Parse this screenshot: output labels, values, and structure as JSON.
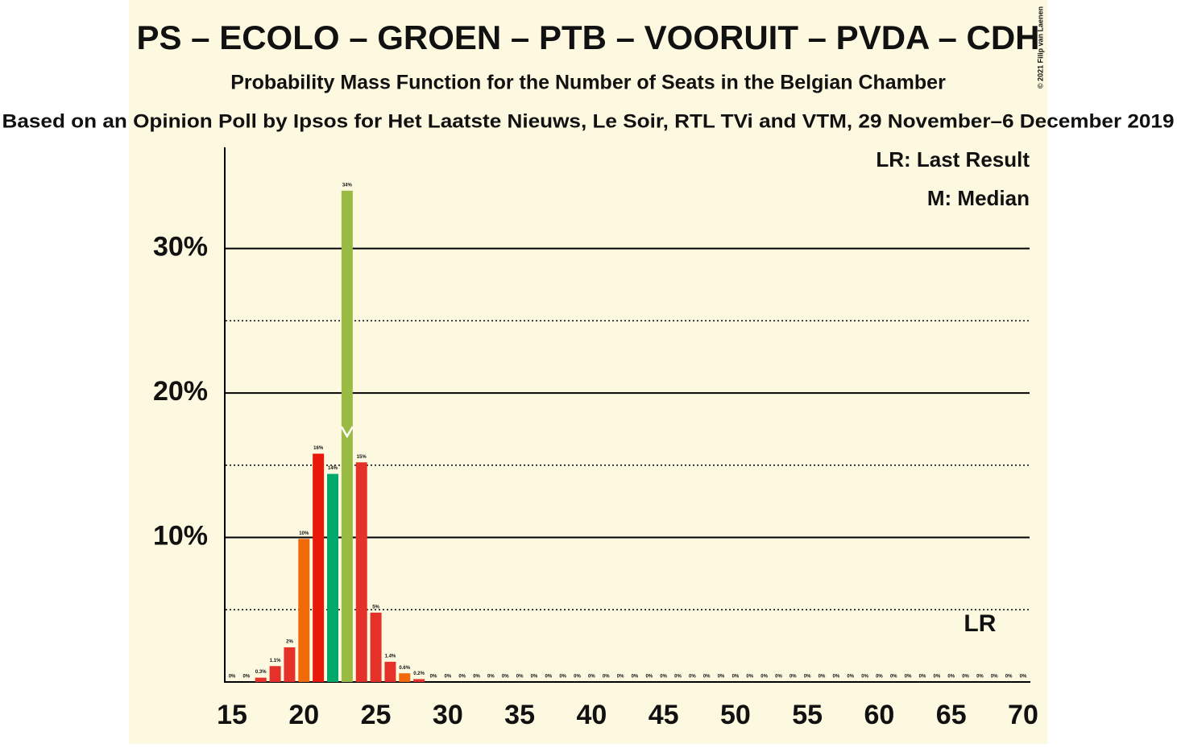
{
  "chart_data": {
    "type": "bar",
    "title": "PS – ECOLO – GROEN – PTB – VOORUIT – PVDA – CDH",
    "subtitle": "Probability Mass Function for the Number of Seats in the Belgian Chamber",
    "source": "Based on an Opinion Poll by Ipsos for Het Laatste Nieuws, Le Soir, RTL TVi and VTM, 29 November–6 December 2019",
    "credit": "© 2021 Filip van Laenen",
    "legend": [
      "LR: Last Result",
      "M: Median"
    ],
    "x": [
      15,
      16,
      17,
      18,
      19,
      20,
      21,
      22,
      23,
      24,
      25,
      26,
      27,
      28,
      29,
      30,
      31,
      32,
      33,
      34,
      35,
      36,
      37,
      38,
      39,
      40,
      41,
      42,
      43,
      44,
      45,
      46,
      47,
      48,
      49,
      50,
      51,
      52,
      53,
      54,
      55,
      56,
      57,
      58,
      59,
      60,
      61,
      62,
      63,
      64,
      65,
      66,
      67,
      68,
      69,
      70
    ],
    "values": [
      0,
      0,
      0.3,
      1.1,
      2.4,
      9.9,
      15.8,
      14.4,
      34,
      15.2,
      4.8,
      1.4,
      0.6,
      0.2,
      0,
      0,
      0,
      0,
      0,
      0,
      0,
      0,
      0,
      0,
      0,
      0,
      0,
      0,
      0,
      0,
      0,
      0,
      0,
      0,
      0,
      0,
      0,
      0,
      0,
      0,
      0,
      0,
      0,
      0,
      0,
      0,
      0,
      0,
      0,
      0,
      0,
      0,
      0,
      0,
      0,
      0
    ],
    "value_labels": [
      "0%",
      "0%",
      "0.3%",
      "1.1%",
      "2%",
      "10%",
      "16%",
      "14%",
      "34%",
      "15%",
      "5%",
      "1.4%",
      "0.6%",
      "0.2%",
      "0%",
      "0%",
      "0%",
      "0%",
      "0%",
      "0%",
      "0%",
      "0%",
      "0%",
      "0%",
      "0%",
      "0%",
      "0%",
      "0%",
      "0%",
      "0%",
      "0%",
      "0%",
      "0%",
      "0%",
      "0%",
      "0%",
      "0%",
      "0%",
      "0%",
      "0%",
      "0%",
      "0%",
      "0%",
      "0%",
      "0%",
      "0%",
      "0%",
      "0%",
      "0%",
      "0%",
      "0%",
      "0%",
      "0%",
      "0%",
      "0%",
      "0%"
    ],
    "colors": [
      "#e4322b",
      "#e4322b",
      "#e4322b",
      "#e4322b",
      "#e4322b",
      "#f06a0a",
      "#e8180a",
      "#00a86b",
      "#99bb44",
      "#e4322b",
      "#e4322b",
      "#e4322b",
      "#f06a0a",
      "#e4322b",
      "#e4322b",
      "#e4322b",
      "#e4322b",
      "#e4322b",
      "#e4322b",
      "#e4322b",
      "#e4322b",
      "#e4322b",
      "#e4322b",
      "#e4322b",
      "#e4322b",
      "#e4322b",
      "#e4322b",
      "#e4322b",
      "#e4322b",
      "#e4322b",
      "#e4322b",
      "#e4322b",
      "#e4322b",
      "#e4322b",
      "#e4322b",
      "#e4322b",
      "#e4322b",
      "#e4322b",
      "#e4322b",
      "#e4322b",
      "#e4322b",
      "#e4322b",
      "#e4322b",
      "#e4322b",
      "#e4322b",
      "#e4322b",
      "#e4322b",
      "#e4322b",
      "#e4322b",
      "#e4322b",
      "#e4322b",
      "#e4322b",
      "#e4322b",
      "#e4322b",
      "#e4322b",
      "#e4322b"
    ],
    "xlim": [
      14.55,
      70.45
    ],
    "xticks": [
      15,
      20,
      25,
      30,
      35,
      40,
      45,
      50,
      55,
      60,
      65,
      70
    ],
    "ylim": [
      0,
      37
    ],
    "yticks": [
      {
        "value": 10,
        "label": "10%"
      },
      {
        "value": 20,
        "label": "20%"
      },
      {
        "value": 30,
        "label": "30%"
      }
    ],
    "minor_yticks": [
      5,
      15,
      25
    ],
    "median": 23,
    "last_result": {
      "x": 67,
      "label": "LR"
    }
  }
}
